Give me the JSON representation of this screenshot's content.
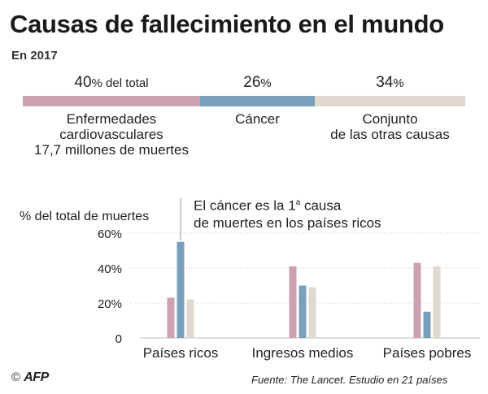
{
  "header": {
    "title": "Causas de fallecimiento en el mundo",
    "subtitle": "En 2017"
  },
  "share_bar": {
    "segments": [
      {
        "pct_num": "40",
        "pct_unit": "% del total",
        "value": 40,
        "color": "#cda2b0",
        "label_lines": [
          "Enfermedades",
          "cardiovasculares",
          "17,7 millones de muertes"
        ]
      },
      {
        "pct_num": "26",
        "pct_unit": "%",
        "value": 26,
        "color": "#7a9fbd",
        "label_lines": [
          "Cáncer"
        ]
      },
      {
        "pct_num": "34",
        "pct_unit": "%",
        "value": 34,
        "color": "#e0d9cf",
        "label_lines": [
          "Conjunto",
          "de las otras causas"
        ]
      }
    ]
  },
  "chart_data": {
    "type": "bar",
    "title": "Causas de fallecimiento en el mundo",
    "ylabel": "% del total de muertes",
    "ylim": [
      0,
      60
    ],
    "yticks": [
      0,
      20,
      40,
      60
    ],
    "ytick_labels": [
      "0",
      "20%",
      "40%",
      "60%"
    ],
    "categories": [
      "Países ricos",
      "Ingresos medios",
      "Países pobres"
    ],
    "series": [
      {
        "name": "Enfermedades cardiovasculares",
        "color": "#cda2b0",
        "values": [
          23,
          41,
          43
        ]
      },
      {
        "name": "Cáncer",
        "color": "#7a9fbd",
        "values": [
          55,
          30,
          15
        ]
      },
      {
        "name": "Conjunto de las otras causas",
        "color": "#e0d9cf",
        "values": [
          22,
          29,
          41
        ]
      }
    ],
    "annotation": {
      "line1_pre": "El cáncer es la 1",
      "line1_sup": "a",
      "line1_post": " causa",
      "line2": "de muertes en los países ricos"
    }
  },
  "footer": {
    "copyright": "©",
    "agency": "AFP",
    "source": "Fuente: The Lancet. Estudio en 21 países"
  }
}
